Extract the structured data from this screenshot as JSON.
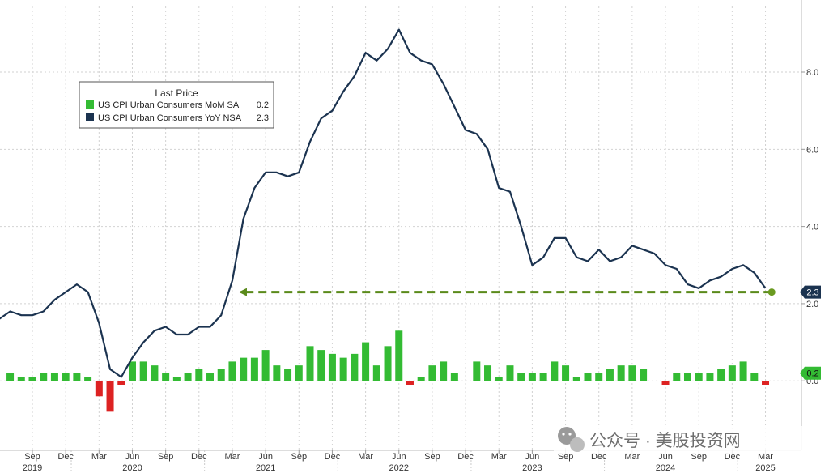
{
  "chart_data": {
    "type": "line",
    "legend": {
      "title": "Last Price",
      "placement": "top-left",
      "entries": [
        {
          "label": "US CPI Urban Consumers MoM SA",
          "value": "0.2",
          "color": "#33bb33"
        },
        {
          "label": "US CPI Urban Consumers YoY NSA",
          "value": "2.3",
          "color": "#1b3350"
        }
      ]
    },
    "y_axis": {
      "side": "right",
      "range": [
        -1.8,
        9.7
      ],
      "ticks": [
        "8.0",
        "6.0",
        "4.0",
        "2.0",
        "0.0"
      ],
      "tick_values": [
        8,
        6,
        4,
        2,
        0
      ]
    },
    "x_axis": {
      "month_ticks": [
        {
          "label": "Sep",
          "x": "2019-09"
        },
        {
          "label": "Dec",
          "x": "2019-12"
        },
        {
          "label": "Mar",
          "x": "2020-03"
        },
        {
          "label": "Jun",
          "x": "2020-06"
        },
        {
          "label": "Sep",
          "x": "2020-09"
        },
        {
          "label": "Dec",
          "x": "2020-12"
        },
        {
          "label": "Mar",
          "x": "2021-03"
        },
        {
          "label": "Jun",
          "x": "2021-06"
        },
        {
          "label": "Sep",
          "x": "2021-09"
        },
        {
          "label": "Dec",
          "x": "2021-12"
        },
        {
          "label": "Mar",
          "x": "2022-03"
        },
        {
          "label": "Jun",
          "x": "2022-06"
        },
        {
          "label": "Sep",
          "x": "2022-09"
        },
        {
          "label": "Dec",
          "x": "2022-12"
        },
        {
          "label": "Mar",
          "x": "2023-03"
        },
        {
          "label": "Jun",
          "x": "2023-06"
        },
        {
          "label": "Sep",
          "x": "2023-09"
        },
        {
          "label": "Dec",
          "x": "2023-12"
        },
        {
          "label": "Mar",
          "x": "2024-03"
        },
        {
          "label": "Jun",
          "x": "2024-06"
        },
        {
          "label": "Sep",
          "x": "2024-09"
        },
        {
          "label": "Dec",
          "x": "2024-12"
        },
        {
          "label": "Mar",
          "x": "2025-03"
        }
      ],
      "year_labels": [
        {
          "label": "2019",
          "x": "2019-09"
        },
        {
          "label": "2020",
          "x": "2020-06"
        },
        {
          "label": "2021",
          "x": "2021-06"
        },
        {
          "label": "2022",
          "x": "2022-06"
        },
        {
          "label": "2023",
          "x": "2023-06"
        },
        {
          "label": "2024",
          "x": "2024-06"
        },
        {
          "label": "2025",
          "x": "2025-03"
        }
      ],
      "year_boundaries": [
        "2019-12",
        "2020-12",
        "2021-12",
        "2022-12",
        "2023-12",
        "2024-12"
      ]
    },
    "grid": true,
    "series": [
      {
        "name": "US CPI Urban Consumers YoY NSA",
        "type": "line",
        "color": "#1b3350",
        "x": [
          "2019-06",
          "2019-07",
          "2019-08",
          "2019-09",
          "2019-10",
          "2019-11",
          "2019-12",
          "2020-01",
          "2020-02",
          "2020-03",
          "2020-04",
          "2020-05",
          "2020-06",
          "2020-07",
          "2020-08",
          "2020-09",
          "2020-10",
          "2020-11",
          "2020-12",
          "2021-01",
          "2021-02",
          "2021-03",
          "2021-04",
          "2021-05",
          "2021-06",
          "2021-07",
          "2021-08",
          "2021-09",
          "2021-10",
          "2021-11",
          "2021-12",
          "2022-01",
          "2022-02",
          "2022-03",
          "2022-04",
          "2022-05",
          "2022-06",
          "2022-07",
          "2022-08",
          "2022-09",
          "2022-10",
          "2022-11",
          "2022-12",
          "2023-01",
          "2023-02",
          "2023-03",
          "2023-04",
          "2023-05",
          "2023-06",
          "2023-07",
          "2023-08",
          "2023-09",
          "2023-10",
          "2023-11",
          "2023-12",
          "2024-01",
          "2024-02",
          "2024-03",
          "2024-04",
          "2024-05",
          "2024-06",
          "2024-07",
          "2024-08",
          "2024-09",
          "2024-10",
          "2024-11",
          "2024-12",
          "2025-01",
          "2025-02",
          "2025-03"
        ],
        "values": [
          1.6,
          1.8,
          1.7,
          1.7,
          1.8,
          2.1,
          2.3,
          2.5,
          2.3,
          1.5,
          0.3,
          0.1,
          0.6,
          1.0,
          1.3,
          1.4,
          1.2,
          1.2,
          1.4,
          1.4,
          1.7,
          2.6,
          4.2,
          5.0,
          5.4,
          5.4,
          5.3,
          5.4,
          6.2,
          6.8,
          7.0,
          7.5,
          7.9,
          8.5,
          8.3,
          8.6,
          9.1,
          8.5,
          8.3,
          8.2,
          7.7,
          7.1,
          6.5,
          6.4,
          6.0,
          5.0,
          4.9,
          4.0,
          3.0,
          3.2,
          3.7,
          3.7,
          3.2,
          3.1,
          3.4,
          3.1,
          3.2,
          3.5,
          3.4,
          3.3,
          3.0,
          2.9,
          2.5,
          2.4,
          2.6,
          2.7,
          2.9,
          3.0,
          2.8,
          2.4
        ]
      },
      {
        "name": "US CPI Urban Consumers MoM SA",
        "type": "bar",
        "color_positive": "#33bb33",
        "color_negative": "#dd2222",
        "x": [
          "2019-06",
          "2019-07",
          "2019-08",
          "2019-09",
          "2019-10",
          "2019-11",
          "2019-12",
          "2020-01",
          "2020-02",
          "2020-03",
          "2020-04",
          "2020-05",
          "2020-06",
          "2020-07",
          "2020-08",
          "2020-09",
          "2020-10",
          "2020-11",
          "2020-12",
          "2021-01",
          "2021-02",
          "2021-03",
          "2021-04",
          "2021-05",
          "2021-06",
          "2021-07",
          "2021-08",
          "2021-09",
          "2021-10",
          "2021-11",
          "2021-12",
          "2022-01",
          "2022-02",
          "2022-03",
          "2022-04",
          "2022-05",
          "2022-06",
          "2022-07",
          "2022-08",
          "2022-09",
          "2022-10",
          "2022-11",
          "2022-12",
          "2023-01",
          "2023-02",
          "2023-03",
          "2023-04",
          "2023-05",
          "2023-06",
          "2023-07",
          "2023-08",
          "2023-09",
          "2023-10",
          "2023-11",
          "2023-12",
          "2024-01",
          "2024-02",
          "2024-03",
          "2024-04",
          "2024-05",
          "2024-06",
          "2024-07",
          "2024-08",
          "2024-09",
          "2024-10",
          "2024-11",
          "2024-12",
          "2025-01",
          "2025-02",
          "2025-03"
        ],
        "values": [
          0.0,
          0.2,
          0.1,
          0.1,
          0.2,
          0.2,
          0.2,
          0.2,
          0.1,
          -0.4,
          -0.8,
          -0.1,
          0.5,
          0.5,
          0.4,
          0.2,
          0.1,
          0.2,
          0.3,
          0.2,
          0.3,
          0.5,
          0.6,
          0.6,
          0.8,
          0.4,
          0.3,
          0.4,
          0.9,
          0.8,
          0.7,
          0.6,
          0.7,
          1.0,
          0.4,
          0.9,
          1.3,
          -0.1,
          0.1,
          0.4,
          0.5,
          0.2,
          0.0,
          0.5,
          0.4,
          0.1,
          0.4,
          0.2,
          0.2,
          0.2,
          0.5,
          0.4,
          0.1,
          0.2,
          0.2,
          0.3,
          0.4,
          0.4,
          0.3,
          0.0,
          -0.1,
          0.2,
          0.2,
          0.2,
          0.2,
          0.3,
          0.4,
          0.5,
          0.2,
          -0.1
        ]
      }
    ],
    "latest_markers": [
      {
        "label": "2.3",
        "value": 2.3,
        "color": "#1b3350"
      },
      {
        "label": "0.2",
        "value": 0.2,
        "color": "#33bb33"
      }
    ],
    "reference_arrow": {
      "value": 2.3,
      "from": "2025-04",
      "to": "2021-03",
      "color": "#5a8a1a"
    }
  },
  "watermark": {
    "text": "公众号 · 美股投资网"
  }
}
